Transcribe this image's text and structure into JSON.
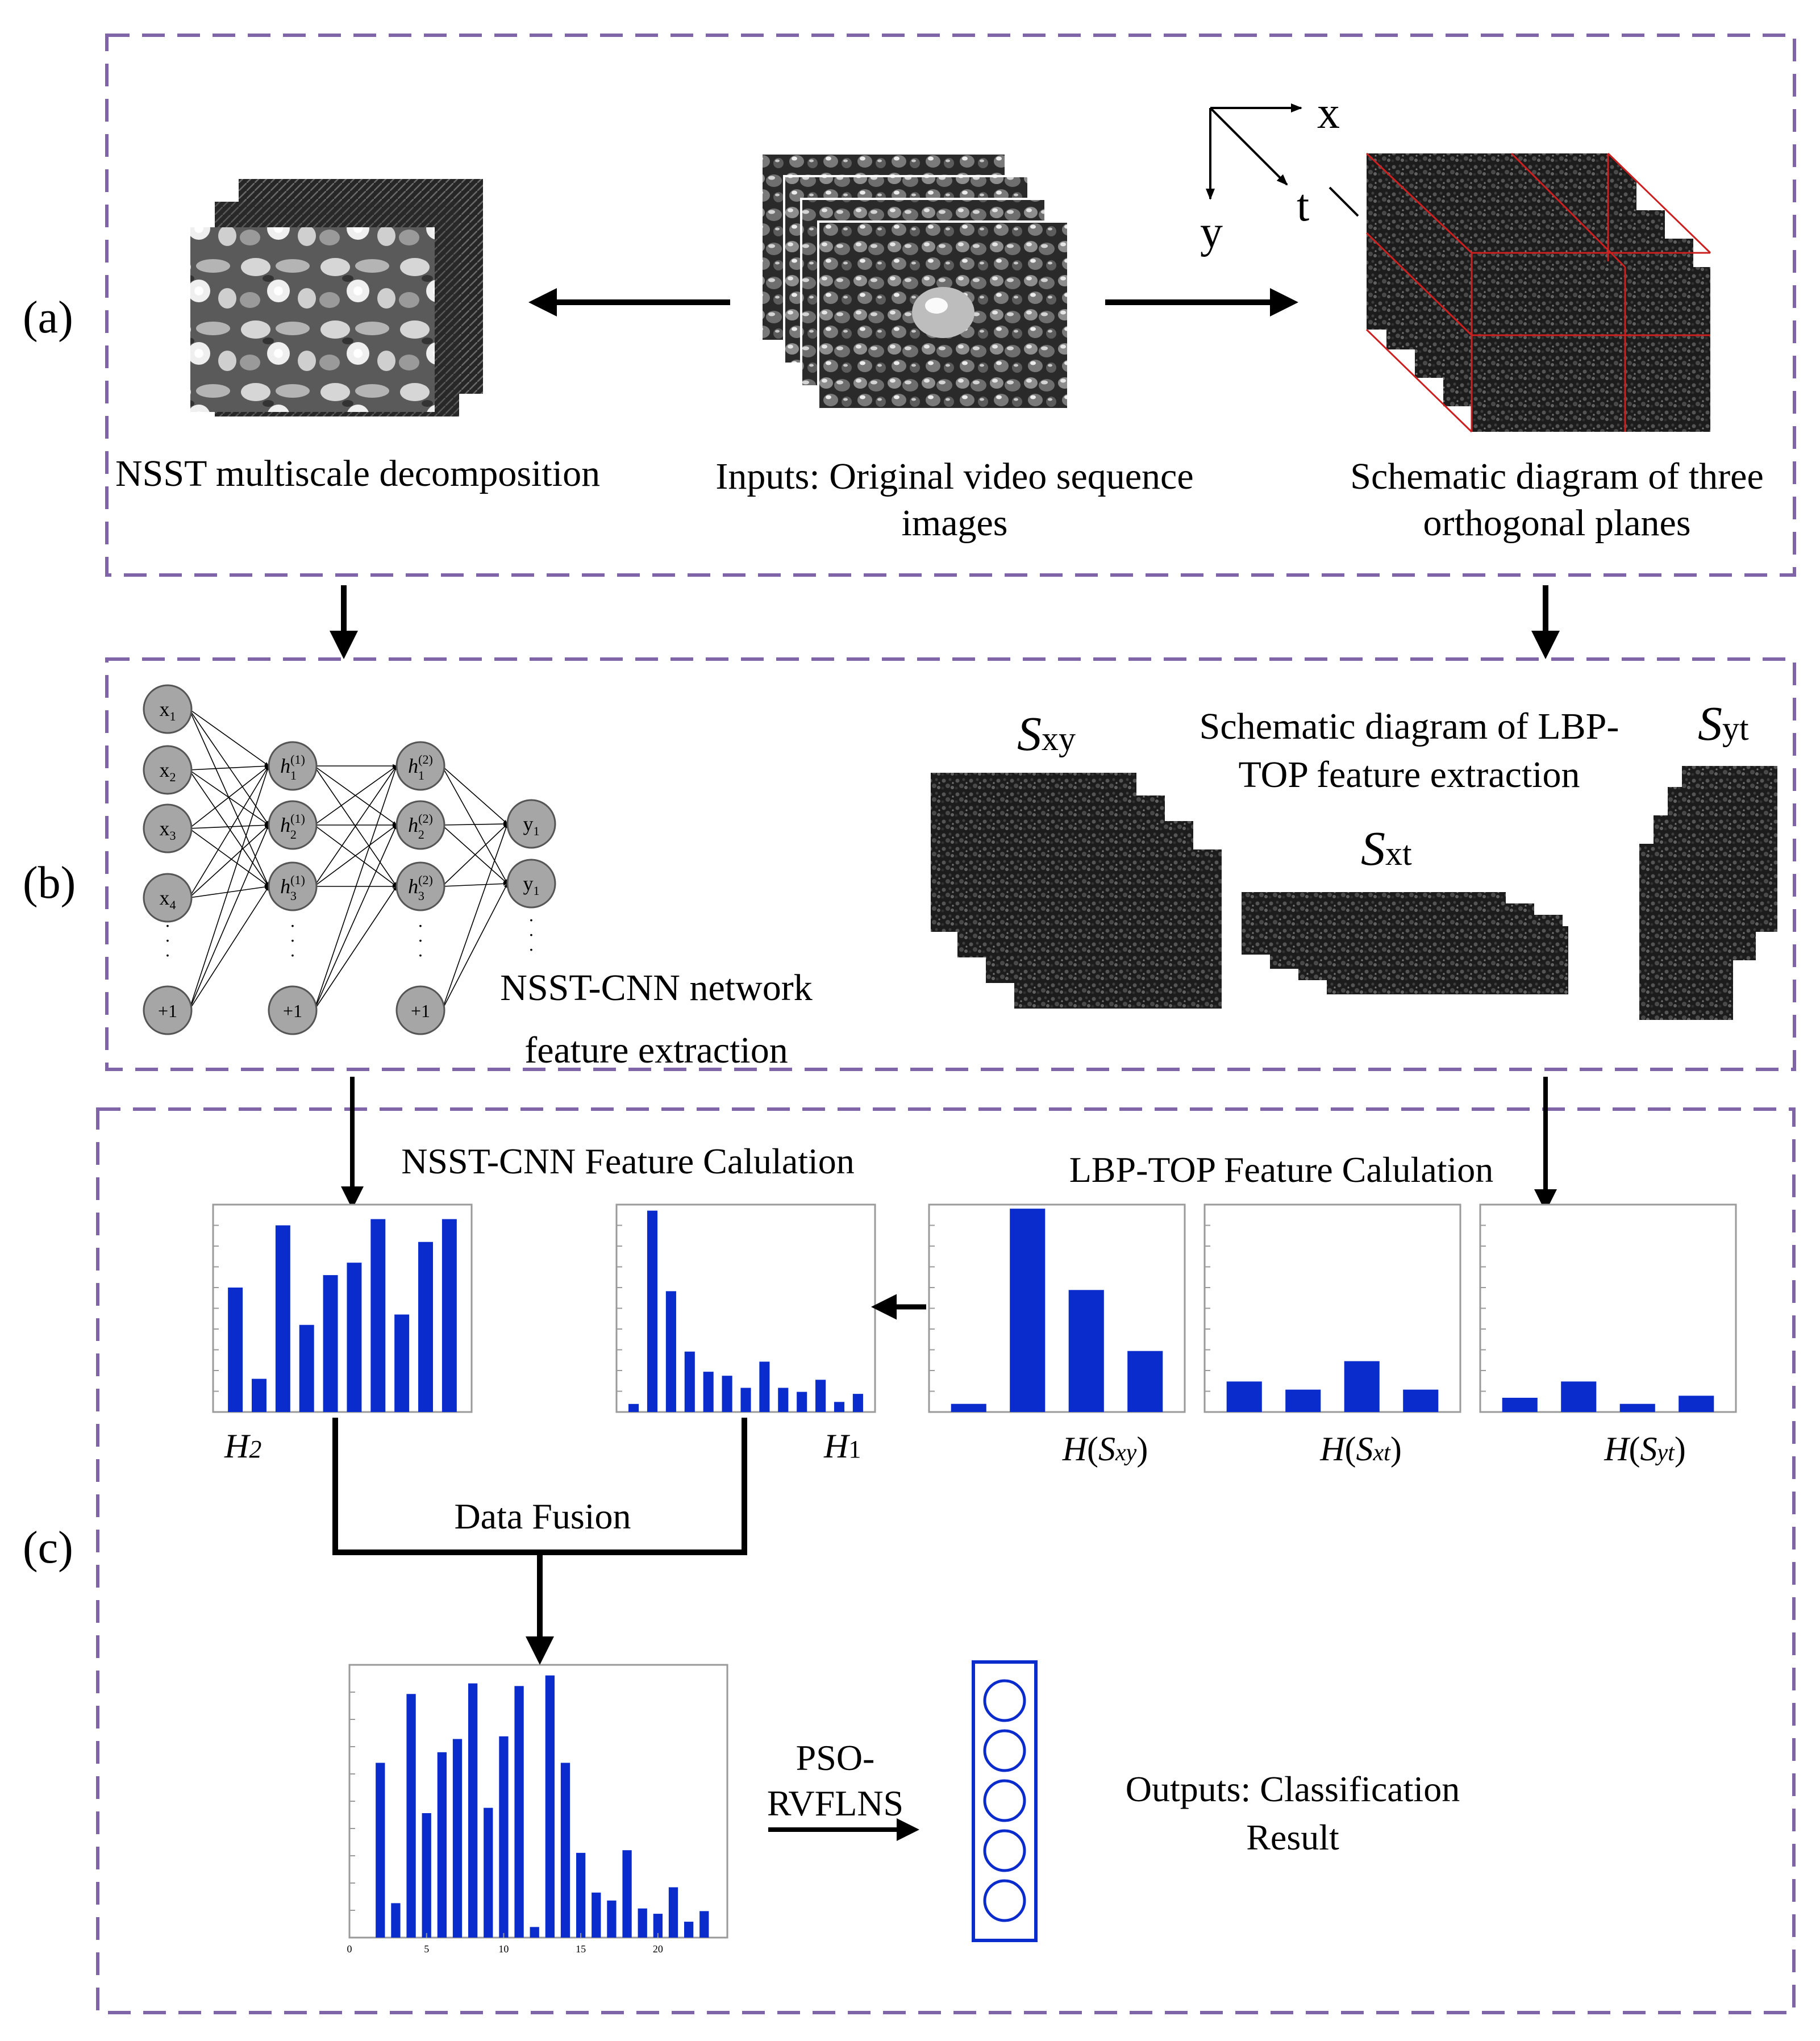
{
  "colors": {
    "frame": "#7f64a8",
    "bar": "#0b2ccc",
    "neuron": "#a6a6a6",
    "plane_line": "#cc2020"
  },
  "panels": {
    "a": {
      "label": "(a)"
    },
    "b": {
      "label": "(b)"
    },
    "c": {
      "label": "(c)"
    }
  },
  "panel_a": {
    "nsst_caption": "NSST multiscale decomposition",
    "input_caption_line1": "Inputs: Original video sequence",
    "input_caption_line2": "images",
    "top_caption_line1": "Schematic diagram of three",
    "top_caption_line2": "orthogonal planes",
    "axis_x": "x",
    "axis_y": "y",
    "axis_t": "t"
  },
  "panel_b": {
    "network_caption_line1": "NSST-CNN network",
    "network_caption_line2": "feature extraction",
    "lbp_caption_line1": "Schematic diagram of LBP-",
    "lbp_caption_line2": "TOP feature extraction",
    "s_letter": "S",
    "plane_xy_sub": "xy",
    "plane_xt_sub": "xt",
    "plane_yt_sub": "yt",
    "inputs": [
      "x",
      "x",
      "x",
      "x"
    ],
    "input_subs": [
      "1",
      "2",
      "3",
      "4"
    ],
    "hidden_letter": "h",
    "hidden1_subs": [
      "1",
      "2",
      "3"
    ],
    "hidden1_sup": "(1)",
    "hidden2_subs": [
      "1",
      "2",
      "3"
    ],
    "hidden2_sup": "(2)",
    "outputs": [
      "y",
      "y"
    ],
    "output_subs": [
      "1",
      "1"
    ],
    "bias": "+1",
    "dots": "·"
  },
  "panel_c": {
    "nsst_cnn_calc": "NSST-CNN Feature Calulation",
    "lbp_top_calc": "LBP-TOP Feature Calulation",
    "data_fusion": "Data Fusion",
    "pso_line1": "PSO-",
    "pso_line2": "RVFLNS",
    "outputs_line1": "Outputs: Classification",
    "outputs_line2": "Result",
    "h2_label": "H",
    "h2_sub": "2",
    "h1_label": "H",
    "h1_sub": "1",
    "hist_h": "H",
    "hist_paren_open": "(",
    "hist_paren_close": ")",
    "hist_s": "S",
    "hist_xy_sub": "xy",
    "hist_xt_sub": "xt",
    "hist_yt_sub": "yt",
    "output_node_count": 5
  },
  "chart_data": [
    {
      "type": "bar",
      "name_hint": "H2",
      "values": [
        6,
        1.6,
        9,
        4.2,
        6.6,
        7.2,
        9.3,
        4.7,
        8.2,
        9.3
      ]
    },
    {
      "type": "bar",
      "name_hint": "H1",
      "values": [
        0.4,
        10,
        6,
        3,
        2,
        1.8,
        1.2,
        2.5,
        1.2,
        1,
        1.6,
        0.5,
        0.9
      ]
    },
    {
      "type": "bar",
      "name_hint": "H(Sxy)",
      "values": [
        0.4,
        10,
        6,
        3
      ]
    },
    {
      "type": "bar",
      "name_hint": "H(Sxt)",
      "values": [
        1.5,
        1.1,
        2.5,
        1.1
      ]
    },
    {
      "type": "bar",
      "name_hint": "H(Syt)",
      "values": [
        0.7,
        1.5,
        0.4,
        0.8
      ]
    },
    {
      "type": "bar",
      "name_hint": "fused",
      "x": [
        2,
        3,
        4,
        5,
        6,
        7,
        8,
        9,
        10,
        11,
        12,
        13,
        14,
        15,
        16,
        17,
        18,
        19,
        20,
        21,
        22,
        23
      ],
      "values": [
        6.6,
        1.3,
        9.2,
        4.7,
        7,
        7.5,
        9.6,
        4.9,
        7.6,
        9.5,
        0.4,
        9.9,
        6.6,
        3.2,
        1.7,
        1.4,
        3.3,
        1.1,
        0.9,
        1.9,
        0.6,
        1
      ],
      "xticks": [
        0,
        5,
        10,
        15,
        20
      ],
      "xlim": [
        0,
        24.5
      ],
      "ylim": [
        0,
        10.3
      ]
    }
  ]
}
